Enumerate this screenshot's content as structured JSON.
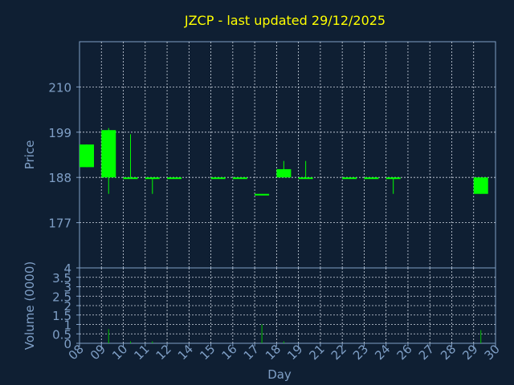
{
  "colors": {
    "background": "#0f1f33",
    "title": "#ffff00",
    "axis_text": "#7f9fc6",
    "frame": "#7f9fc6",
    "grid": "#d0d8e4",
    "candle": "#00ff00",
    "volume": "#00c000"
  },
  "chart_data": {
    "type": "candlestick",
    "title": "JZCP - last updated 29/12/2025",
    "xlabel": "Day",
    "ylabel": "Price",
    "volume_label": "Volume (0000)",
    "days": [
      "08",
      "09",
      "10",
      "11",
      "12",
      "14",
      "15",
      "16",
      "17",
      "18",
      "19",
      "21",
      "22",
      "23",
      "24",
      "26",
      "27",
      "28",
      "29",
      "30"
    ],
    "price_ylim": [
      166,
      221
    ],
    "price_ticks": [
      "210",
      "199",
      "188",
      "177"
    ],
    "price_tick_values": [
      210,
      199,
      188,
      177
    ],
    "volume_ylim": [
      0,
      4
    ],
    "volume_ticks": [
      "4",
      "3.5",
      "3",
      "2.5",
      "2",
      "1.5",
      "1",
      "0.5",
      "0"
    ],
    "volume_tick_values": [
      4,
      3.5,
      3,
      2.5,
      2,
      1.5,
      1,
      0.5,
      0
    ],
    "candles": [
      {
        "day": "08",
        "open": 190.5,
        "high": 196,
        "low": 190.5,
        "close": 196
      },
      {
        "day": "09",
        "open": 188,
        "high": 200,
        "low": 184,
        "close": 199.5
      },
      {
        "day": "10",
        "open": 188,
        "high": 198.5,
        "low": 188,
        "close": 188
      },
      {
        "day": "11",
        "open": 188,
        "high": 188,
        "low": 184,
        "close": 188
      },
      {
        "day": "12",
        "open": 188,
        "high": 188,
        "low": 188,
        "close": 188
      },
      {
        "day": "15",
        "open": 188,
        "high": 188,
        "low": 188,
        "close": 188
      },
      {
        "day": "16",
        "open": 188,
        "high": 188,
        "low": 188,
        "close": 188
      },
      {
        "day": "17",
        "open": 184,
        "high": 184,
        "low": 184,
        "close": 184
      },
      {
        "day": "18",
        "open": 188,
        "high": 192,
        "low": 188,
        "close": 190
      },
      {
        "day": "19",
        "open": 188,
        "high": 192,
        "low": 188,
        "close": 188
      },
      {
        "day": "22",
        "open": 188,
        "high": 188,
        "low": 188,
        "close": 188
      },
      {
        "day": "23",
        "open": 188,
        "high": 188,
        "low": 188,
        "close": 188
      },
      {
        "day": "24",
        "open": 188,
        "high": 188,
        "low": 184,
        "close": 188
      },
      {
        "day": "29",
        "open": 188,
        "high": 188,
        "low": 184,
        "close": 184
      }
    ],
    "volumes": [
      {
        "day": "09",
        "value": 0.75
      },
      {
        "day": "10",
        "value": 0.1
      },
      {
        "day": "11",
        "value": 0.1
      },
      {
        "day": "17",
        "value": 1.0
      },
      {
        "day": "18",
        "value": 0.1
      },
      {
        "day": "29",
        "value": 0.7
      }
    ]
  }
}
